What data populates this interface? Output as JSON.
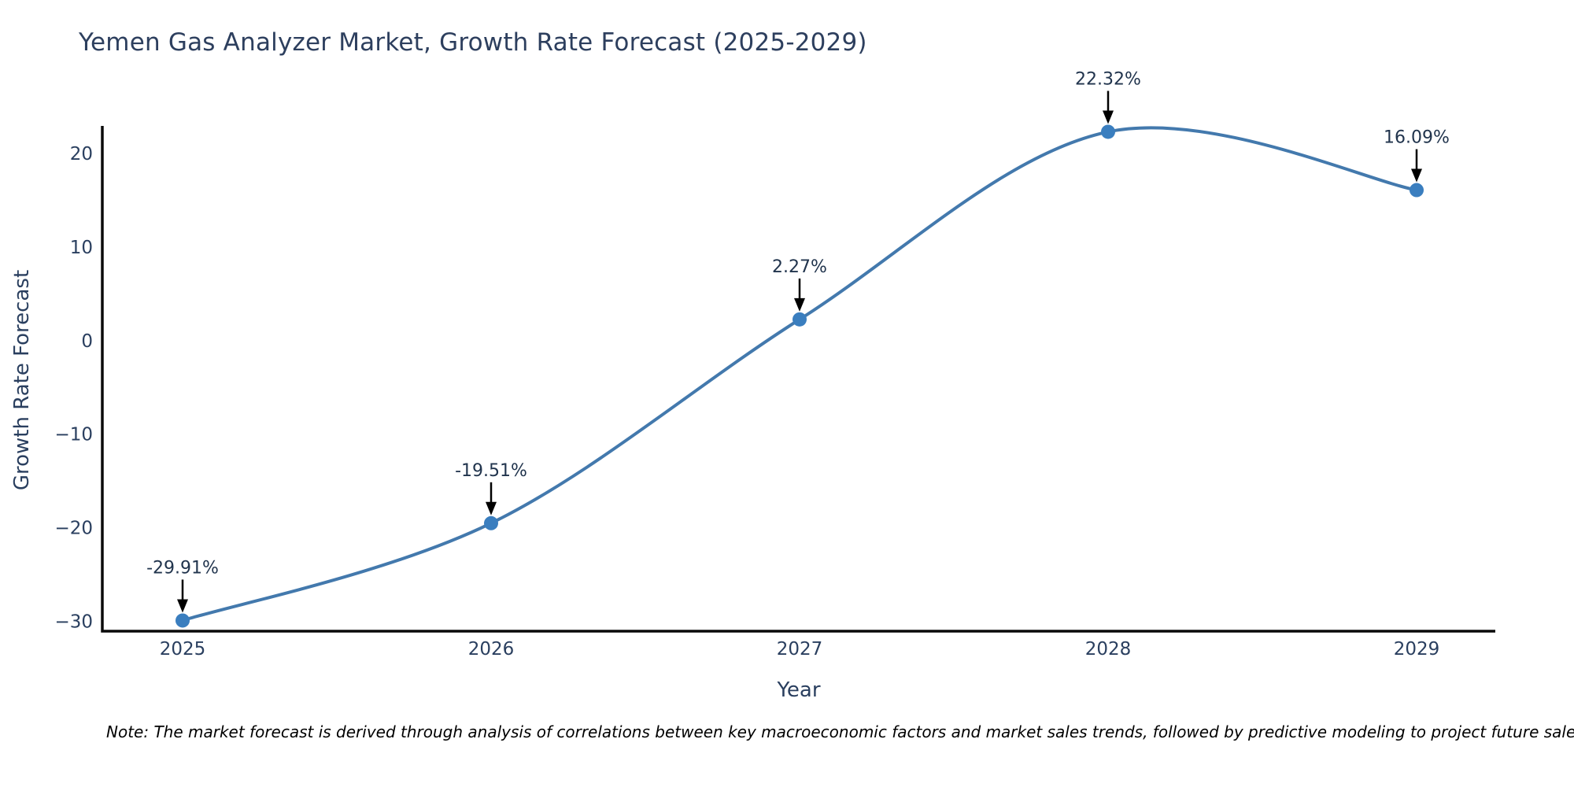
{
  "note": "Note: The market forecast is derived through analysis of correlations between key macroeconomic factors and market sales trends, followed by predictive modeling to project future sales.",
  "chart_data": {
    "type": "line",
    "line_shape": "spline",
    "title": "Yemen Gas Analyzer Market, Growth Rate Forecast (2025-2029)",
    "xlabel": "Year",
    "ylabel": "Growth Rate Forecast",
    "x": [
      2025,
      2026,
      2027,
      2028,
      2029
    ],
    "values": [
      -29.91,
      -19.51,
      2.27,
      22.32,
      16.09
    ],
    "point_labels": [
      "-29.91%",
      "-19.51%",
      "2.27%",
      "22.32%",
      "16.09%"
    ],
    "xtick_labels": [
      "2025",
      "2026",
      "2027",
      "2028",
      "2029"
    ],
    "yticks": [
      20,
      10,
      0,
      -10,
      -20,
      -30
    ],
    "ytick_labels": [
      "20",
      "10",
      "0",
      "−10",
      "−20",
      "−30"
    ],
    "ylim": [
      -31.05,
      22.95
    ],
    "grid": false,
    "legend": "none",
    "marker_size": 9,
    "colors": {
      "line": "#4379ad",
      "marker": "#3a7ebf",
      "axis": "#0a0a0a",
      "text": "#2a3f5f",
      "annotation_text": "#21344d",
      "annotation_arrow": "#000000",
      "background": "#ffffff"
    }
  }
}
